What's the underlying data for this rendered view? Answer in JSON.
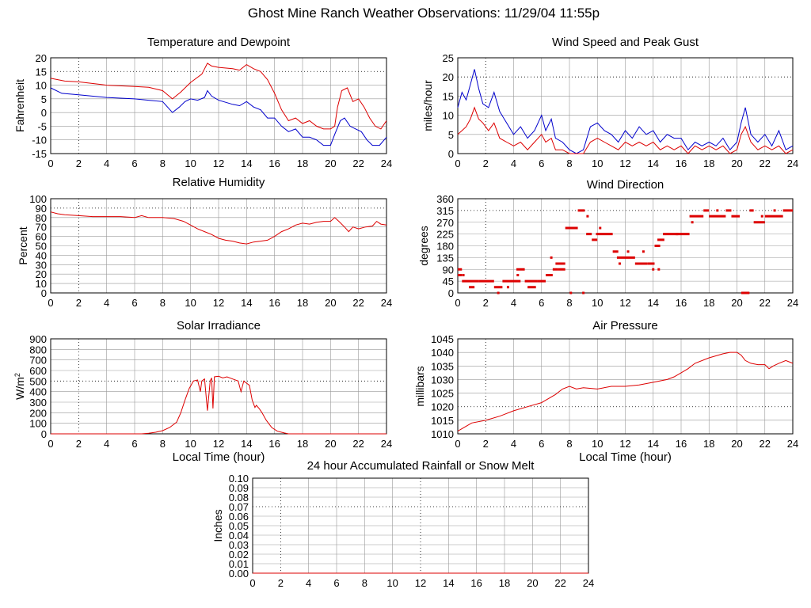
{
  "title": "Ghost Mine Ranch Weather Observations: 11/29/04 11:55p",
  "colors": {
    "red": "#dd0000",
    "blue": "#0000cc",
    "grid": "#999999",
    "major_grid": "#000000"
  },
  "chart_data": [
    {
      "id": "temp",
      "type": "line",
      "title": "Temperature and Dewpoint",
      "xlabel": "",
      "ylabel": "Fahrenheit",
      "xlim": [
        0,
        24
      ],
      "ylim": [
        -15,
        20
      ],
      "xticks": [
        0,
        2,
        4,
        6,
        8,
        10,
        12,
        14,
        16,
        18,
        20,
        22,
        24
      ],
      "yticks": [
        -15,
        -10,
        -5,
        0,
        5,
        10,
        15,
        20
      ],
      "series": [
        {
          "name": "Temperature",
          "color": "#dd0000",
          "x": [
            0,
            1,
            2,
            4,
            6,
            7,
            8,
            8.7,
            9.3,
            10,
            10.8,
            11.2,
            11.5,
            12,
            13,
            13.5,
            14,
            14.5,
            15,
            15.5,
            16,
            16.5,
            17,
            17.5,
            18,
            18.5,
            19,
            19.5,
            20,
            20.3,
            20.5,
            20.8,
            21.2,
            21.6,
            22,
            22.4,
            22.8,
            23.2,
            23.6,
            24
          ],
          "values": [
            12.5,
            11.5,
            11.2,
            10,
            9.5,
            9.2,
            8,
            5,
            7.5,
            11,
            14,
            18,
            17,
            16.5,
            16,
            15.5,
            17.5,
            16,
            15,
            12,
            7,
            1,
            -3,
            -2,
            -4,
            -3,
            -5,
            -6,
            -6,
            -5,
            2,
            8,
            9,
            4,
            5,
            2,
            -2,
            -5,
            -6,
            -3
          ]
        },
        {
          "name": "Dewpoint",
          "color": "#0000cc",
          "x": [
            0,
            0.8,
            2,
            4,
            6,
            7,
            8,
            8.7,
            9.2,
            9.6,
            10,
            10.5,
            11,
            11.2,
            11.5,
            12,
            13,
            13.5,
            14,
            14.5,
            15,
            15.5,
            16,
            16.5,
            17,
            17.5,
            18,
            18.5,
            19,
            19.5,
            20,
            20.3,
            20.7,
            21,
            21.4,
            21.8,
            22.2,
            22.6,
            23,
            23.5,
            24
          ],
          "values": [
            9,
            7,
            6.5,
            5.5,
            5,
            4.5,
            4,
            0,
            2,
            4,
            5,
            4.5,
            5.5,
            8,
            6,
            4.5,
            3,
            2.5,
            4,
            2,
            1,
            -2,
            -2,
            -5,
            -7,
            -6,
            -9,
            -9,
            -10,
            -12,
            -12,
            -8,
            -3,
            -2,
            -5,
            -6,
            -7,
            -10,
            -12,
            -12,
            -9
          ]
        }
      ]
    },
    {
      "id": "wind",
      "type": "line",
      "title": "Wind Speed and Peak Gust",
      "xlabel": "",
      "ylabel": "miles/hour",
      "xlim": [
        0,
        24
      ],
      "ylim": [
        0,
        25
      ],
      "xticks": [
        0,
        2,
        4,
        6,
        8,
        10,
        12,
        14,
        16,
        18,
        20,
        22,
        24
      ],
      "yticks": [
        0,
        5,
        10,
        15,
        20,
        25
      ],
      "series": [
        {
          "name": "Peak Gust",
          "color": "#0000cc",
          "x": [
            0,
            0.3,
            0.6,
            0.9,
            1.2,
            1.5,
            1.8,
            2.2,
            2.6,
            3,
            3.5,
            4,
            4.5,
            5,
            5.5,
            6,
            6.3,
            6.7,
            7,
            7.5,
            8,
            8.5,
            9,
            9.5,
            10,
            10.5,
            11,
            11.5,
            12,
            12.5,
            13,
            13.5,
            14,
            14.5,
            15,
            15.5,
            16,
            16.5,
            17,
            17.5,
            18,
            18.5,
            19,
            19.5,
            20,
            20.3,
            20.6,
            21,
            21.5,
            22,
            22.5,
            23,
            23.5,
            24
          ],
          "values": [
            12,
            16,
            14,
            18,
            22,
            17,
            13,
            12,
            16,
            11,
            8,
            5,
            7,
            4,
            6,
            10,
            6,
            9,
            4,
            3,
            1,
            0,
            1,
            7,
            8,
            6,
            5,
            3,
            6,
            4,
            7,
            5,
            6,
            3,
            5,
            4,
            4,
            1,
            3,
            2,
            3,
            2,
            4,
            1,
            3,
            8,
            12,
            5,
            3,
            5,
            2,
            6,
            1,
            2
          ]
        },
        {
          "name": "Wind Speed",
          "color": "#dd0000",
          "x": [
            0,
            0.3,
            0.6,
            0.9,
            1.2,
            1.5,
            1.8,
            2.2,
            2.6,
            3,
            3.5,
            4,
            4.5,
            5,
            5.5,
            6,
            6.3,
            6.7,
            7,
            7.5,
            8,
            8.5,
            9,
            9.5,
            10,
            10.5,
            11,
            11.5,
            12,
            12.5,
            13,
            13.5,
            14,
            14.5,
            15,
            15.5,
            16,
            16.5,
            17,
            17.5,
            18,
            18.5,
            19,
            19.5,
            20,
            20.3,
            20.6,
            21,
            21.5,
            22,
            22.5,
            23,
            23.5,
            24
          ],
          "values": [
            5,
            6,
            7,
            9,
            12,
            9,
            8,
            6,
            8,
            4,
            3,
            2,
            3,
            1,
            3,
            5,
            3,
            4,
            1,
            1,
            0,
            0,
            0,
            3,
            4,
            3,
            2,
            1,
            3,
            2,
            3,
            2,
            3,
            1,
            2,
            1,
            2,
            0,
            2,
            1,
            2,
            1,
            2,
            0,
            1,
            5,
            7,
            3,
            1,
            2,
            1,
            2,
            0,
            1
          ]
        }
      ]
    },
    {
      "id": "rh",
      "type": "line",
      "title": "Relative Humidity",
      "xlabel": "",
      "ylabel": "Percent",
      "xlim": [
        0,
        24
      ],
      "ylim": [
        0,
        100
      ],
      "xticks": [
        0,
        2,
        4,
        6,
        8,
        10,
        12,
        14,
        16,
        18,
        20,
        22,
        24
      ],
      "yticks": [
        0,
        10,
        20,
        30,
        40,
        50,
        60,
        70,
        80,
        90,
        100
      ],
      "series": [
        {
          "name": "Relative Humidity",
          "color": "#dd0000",
          "x": [
            0,
            0.5,
            1,
            2,
            3,
            4,
            5,
            6,
            6.5,
            7,
            8,
            8.8,
            9.5,
            10,
            10.5,
            11,
            11.5,
            12,
            12.5,
            13,
            13.5,
            14,
            14.5,
            15,
            15.5,
            16,
            16.5,
            17,
            17.5,
            18,
            18.5,
            19,
            19.5,
            20,
            20.3,
            20.6,
            21,
            21.3,
            21.6,
            22,
            22.5,
            23,
            23.3,
            23.6,
            24
          ],
          "values": [
            86,
            84,
            83,
            82,
            81,
            81,
            81,
            80,
            82,
            80,
            80,
            79,
            76,
            72,
            68,
            65,
            62,
            58,
            56,
            55,
            53,
            52,
            54,
            55,
            56,
            60,
            65,
            68,
            72,
            74,
            73,
            75,
            76,
            76,
            80,
            76,
            70,
            65,
            70,
            68,
            70,
            71,
            76,
            73,
            72
          ]
        }
      ]
    },
    {
      "id": "wdir",
      "type": "scatter",
      "title": "Wind Direction",
      "xlabel": "",
      "ylabel": "degrees",
      "xlim": [
        0,
        24
      ],
      "ylim": [
        0,
        360
      ],
      "xticks": [
        0,
        2,
        4,
        6,
        8,
        10,
        12,
        14,
        16,
        18,
        20,
        22,
        24
      ],
      "yticks": [
        0,
        45,
        90,
        135,
        180,
        225,
        270,
        315,
        360
      ],
      "segments": [
        [
          0,
          0.3,
          90
        ],
        [
          0,
          0.3,
          68
        ],
        [
          0.3,
          1.5,
          45
        ],
        [
          0.8,
          1.2,
          22
        ],
        [
          1.5,
          2.6,
          45
        ],
        [
          2.6,
          3.2,
          22
        ],
        [
          3.2,
          4.5,
          45
        ],
        [
          4.2,
          4.8,
          90
        ],
        [
          4.8,
          5.7,
          45
        ],
        [
          5.0,
          5.6,
          22
        ],
        [
          5.7,
          6.3,
          45
        ],
        [
          6.3,
          6.8,
          68
        ],
        [
          6.8,
          7.2,
          90
        ],
        [
          7.2,
          7.7,
          90
        ],
        [
          7.0,
          7.7,
          112
        ],
        [
          7.7,
          8.6,
          248
        ],
        [
          8.6,
          9.1,
          315
        ],
        [
          9.2,
          9.6,
          225
        ],
        [
          9.6,
          10.0,
          203
        ],
        [
          9.9,
          11.1,
          225
        ],
        [
          11.1,
          11.5,
          158
        ],
        [
          11.4,
          12.7,
          135
        ],
        [
          12.7,
          13.6,
          112
        ],
        [
          13.6,
          14.1,
          112
        ],
        [
          14.1,
          14.5,
          180
        ],
        [
          14.3,
          14.8,
          203
        ],
        [
          14.7,
          16.6,
          225
        ],
        [
          16.6,
          17.6,
          293
        ],
        [
          17.6,
          18.0,
          315
        ],
        [
          18.0,
          19.2,
          293
        ],
        [
          19.2,
          19.6,
          315
        ],
        [
          19.6,
          20.2,
          293
        ],
        [
          20.3,
          20.9,
          0
        ],
        [
          20.9,
          21.2,
          315
        ],
        [
          21.2,
          22.0,
          270
        ],
        [
          22.0,
          23.3,
          293
        ],
        [
          23.3,
          24,
          315
        ]
      ],
      "points": [
        [
          0.4,
          68
        ],
        [
          2.9,
          0
        ],
        [
          3.6,
          22
        ],
        [
          4.3,
          68
        ],
        [
          6.7,
          135
        ],
        [
          8.1,
          0
        ],
        [
          9.0,
          0
        ],
        [
          9.3,
          293
        ],
        [
          10.2,
          248
        ],
        [
          11.6,
          112
        ],
        [
          12.2,
          158
        ],
        [
          13.3,
          158
        ],
        [
          14.0,
          90
        ],
        [
          14.4,
          90
        ],
        [
          15.7,
          225
        ],
        [
          16.8,
          270
        ],
        [
          18.6,
          315
        ],
        [
          21.8,
          293
        ],
        [
          22.7,
          315
        ]
      ]
    },
    {
      "id": "solar",
      "type": "line",
      "title": "Solar Irradiance",
      "xlabel": "Local Time (hour)",
      "ylabel": "W/m",
      "ylabel_sup": "2",
      "xlim": [
        0,
        24
      ],
      "ylim": [
        0,
        900
      ],
      "xticks": [
        0,
        2,
        4,
        6,
        8,
        10,
        12,
        14,
        16,
        18,
        20,
        22,
        24
      ],
      "yticks": [
        0,
        100,
        200,
        300,
        400,
        500,
        600,
        700,
        800,
        900
      ],
      "series": [
        {
          "name": "Solar Irradiance",
          "color": "#dd0000",
          "x": [
            0,
            6.5,
            7,
            7.5,
            8,
            8.5,
            9,
            9.3,
            9.6,
            9.9,
            10.2,
            10.5,
            10.7,
            10.8,
            11,
            11.2,
            11.4,
            11.5,
            11.6,
            11.7,
            12,
            12.3,
            12.6,
            13,
            13.4,
            13.6,
            13.8,
            14,
            14.2,
            14.4,
            14.6,
            14.7,
            14.9,
            15.1,
            15.4,
            15.8,
            16.2,
            16.7,
            17,
            24
          ],
          "values": [
            0,
            0,
            5,
            15,
            30,
            60,
            110,
            200,
            320,
            430,
            500,
            510,
            400,
            500,
            520,
            220,
            500,
            530,
            240,
            540,
            545,
            530,
            540,
            520,
            500,
            400,
            500,
            480,
            460,
            320,
            250,
            270,
            240,
            200,
            130,
            60,
            25,
            8,
            0,
            0
          ]
        }
      ]
    },
    {
      "id": "pres",
      "type": "line",
      "title": "Air Pressure",
      "xlabel": "Local Time (hour)",
      "ylabel": "millibars",
      "xlim": [
        0,
        24
      ],
      "ylim": [
        1010,
        1045
      ],
      "xticks": [
        0,
        2,
        4,
        6,
        8,
        10,
        12,
        14,
        16,
        18,
        20,
        22,
        24
      ],
      "yticks": [
        1010,
        1015,
        1020,
        1025,
        1030,
        1035,
        1040,
        1045
      ],
      "series": [
        {
          "name": "Air Pressure",
          "color": "#dd0000",
          "x": [
            0,
            0.5,
            1,
            2,
            3,
            4,
            5,
            6,
            7,
            7.5,
            8,
            8.5,
            9,
            10,
            11,
            12,
            13,
            14,
            15,
            15.5,
            16,
            16.5,
            17,
            18,
            19,
            19.5,
            20,
            20.3,
            20.6,
            21,
            21.5,
            22,
            22.3,
            22.6,
            23,
            23.5,
            24
          ],
          "values": [
            1011,
            1012.5,
            1014,
            1015,
            1016.5,
            1018.5,
            1020,
            1021.5,
            1024.5,
            1026.5,
            1027.5,
            1026.5,
            1027,
            1026.5,
            1027.5,
            1027.5,
            1028,
            1029,
            1030,
            1031,
            1032.5,
            1034,
            1036,
            1038,
            1039.5,
            1040,
            1040,
            1039,
            1037,
            1036,
            1035.5,
            1035.5,
            1034,
            1035,
            1036,
            1037,
            1036
          ]
        }
      ]
    },
    {
      "id": "rain",
      "type": "line",
      "title": "24 hour Accumulated Rainfall or Snow Melt",
      "xlabel": "",
      "ylabel": "Inches",
      "xlim": [
        0,
        24
      ],
      "ylim": [
        0,
        0.1
      ],
      "xticks": [
        0,
        2,
        4,
        6,
        8,
        10,
        12,
        14,
        16,
        18,
        20,
        22,
        24
      ],
      "yticks": [
        "0.00",
        "0.01",
        "0.02",
        "0.03",
        "0.04",
        "0.05",
        "0.06",
        "0.07",
        "0.08",
        "0.09",
        "0.10"
      ],
      "series": [
        {
          "name": "Rainfall",
          "color": "#dd0000",
          "x": [
            0,
            24
          ],
          "values": [
            0,
            0
          ]
        }
      ]
    }
  ]
}
